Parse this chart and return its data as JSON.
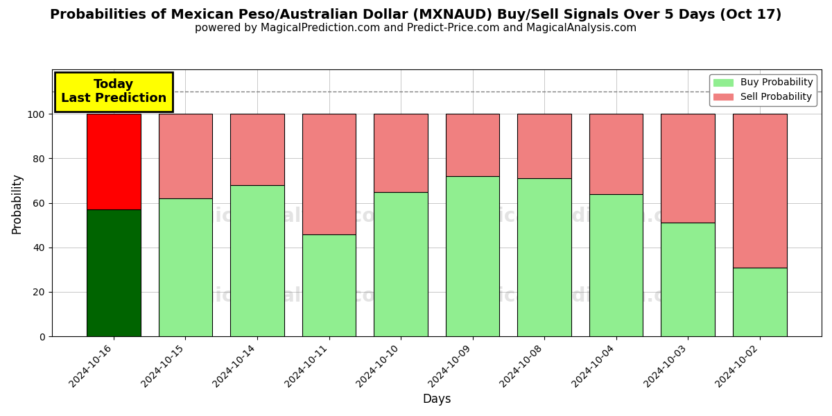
{
  "title": "Probabilities of Mexican Peso/Australian Dollar (MXNAUD) Buy/Sell Signals Over 5 Days (Oct 17)",
  "subtitle": "powered by MagicalPrediction.com and Predict-Price.com and MagicalAnalysis.com",
  "xlabel": "Days",
  "ylabel": "Probability",
  "categories": [
    "2024-10-16",
    "2024-10-15",
    "2024-10-14",
    "2024-10-11",
    "2024-10-10",
    "2024-10-09",
    "2024-10-08",
    "2024-10-04",
    "2024-10-03",
    "2024-10-02"
  ],
  "buy_values": [
    57,
    62,
    68,
    46,
    65,
    72,
    71,
    64,
    51,
    31
  ],
  "sell_values": [
    43,
    38,
    32,
    54,
    35,
    28,
    29,
    36,
    49,
    69
  ],
  "today_buy_color": "#006400",
  "today_sell_color": "#FF0000",
  "buy_color": "#90EE90",
  "sell_color": "#F08080",
  "bar_width": 0.75,
  "ylim": [
    0,
    120
  ],
  "yticks": [
    0,
    20,
    40,
    60,
    80,
    100
  ],
  "dashed_line_y": 110,
  "today_annotation": "Today\nLast Prediction",
  "legend_buy": "Buy Probability",
  "legend_sell": "Sell Probability",
  "background_color": "#ffffff",
  "title_fontsize": 14,
  "subtitle_fontsize": 11
}
